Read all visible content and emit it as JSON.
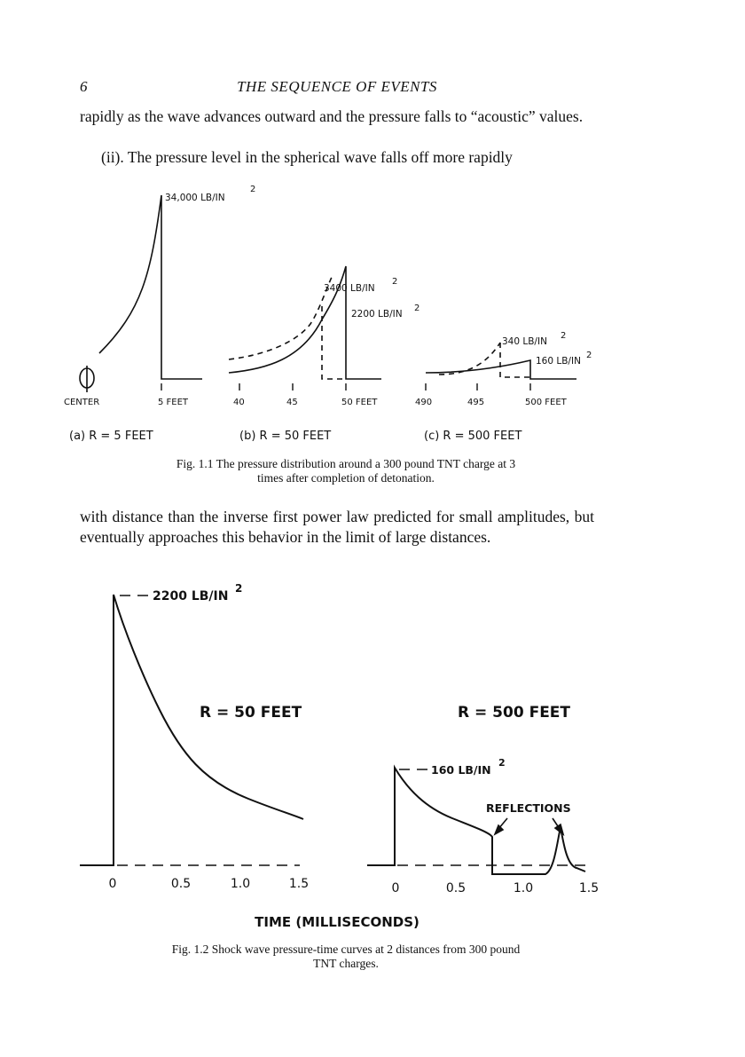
{
  "page": {
    "number": "6",
    "running_title": "THE SEQUENCE OF EVENTS"
  },
  "text": {
    "para1": "rapidly as the wave advances outward and the pressure falls to “acoustic” values.",
    "para2": "(ii). The pressure level in the spherical wave falls off more rapidly",
    "para3": "with distance than the inverse first power law predicted for small amplitudes, but eventually approaches this behavior in the limit of large distances."
  },
  "fig1": {
    "caption_line1": "Fig. 1.1   The pressure distribution around a 300 pound TNT charge at 3",
    "caption_line2": "times after completion of detonation.",
    "peak_a": "34,000 LB/IN",
    "peak_b1": "3400 LB/IN",
    "peak_b2": "2200 LB/IN",
    "peak_c1": "340 LB/IN",
    "peak_c2": "160 LB/IN",
    "sup": "2",
    "tick_center": "CENTER",
    "tick_5": "5 FEET",
    "tick_40": "40",
    "tick_45": "45",
    "tick_50": "50 FEET",
    "tick_490": "490",
    "tick_495": "495",
    "tick_500": "500 FEET",
    "label_a": "(a)  R = 5 FEET",
    "label_b": "(b)  R = 50 FEET",
    "label_c": "(c)  R = 500 FEET"
  },
  "fig2": {
    "caption_line1": "Fig. 1.2   Shock wave pressure-time curves at 2 distances from 300 pound",
    "caption_line2": "TNT charges.",
    "peak_left": "2200 LB/IN",
    "peak_right": "160 LB/IN",
    "sup": "2",
    "r_left": "R = 50 FEET",
    "r_right": "R = 500 FEET",
    "reflections": "REFLECTIONS",
    "xticks_left": [
      "0",
      "0.5",
      "1.0",
      "1.5"
    ],
    "xticks_right": [
      "0",
      "0.5",
      "1.0",
      "1.5"
    ],
    "xlabel": "TIME (MILLISECONDS)"
  }
}
